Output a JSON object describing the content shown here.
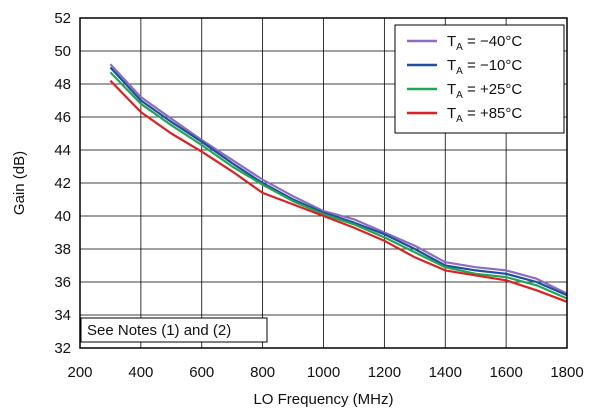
{
  "chart_data": {
    "type": "line",
    "title": "",
    "xlabel": "LO Frequency (MHz)",
    "ylabel": "Gain (dB)",
    "xlim": [
      200,
      1800
    ],
    "ylim": [
      32,
      52
    ],
    "xticks": [
      200,
      400,
      600,
      800,
      1000,
      1200,
      1400,
      1600,
      1800
    ],
    "yticks": [
      32,
      34,
      36,
      38,
      40,
      42,
      44,
      46,
      48,
      50,
      52
    ],
    "grid": true,
    "legend_position": "top-right",
    "note": "See Notes (1) and (2)",
    "legend_prefix": "T",
    "legend_subscript": "A",
    "series": [
      {
        "name": "T_A = −40°C",
        "label_value": " = −40°C",
        "color": "#8e6cbf",
        "x": [
          300,
          400,
          500,
          600,
          700,
          800,
          900,
          1000,
          1100,
          1200,
          1300,
          1400,
          1500,
          1600,
          1700,
          1800
        ],
        "y": [
          49.2,
          47.2,
          45.9,
          44.6,
          43.4,
          42.2,
          41.2,
          40.3,
          39.8,
          39.0,
          38.2,
          37.2,
          36.9,
          36.7,
          36.2,
          35.3
        ]
      },
      {
        "name": "T_A = −10°C",
        "label_value": " = −10°C",
        "color": "#1f4fa0",
        "x": [
          300,
          400,
          500,
          600,
          700,
          800,
          900,
          1000,
          1100,
          1200,
          1300,
          1400,
          1500,
          1600,
          1700,
          1800
        ],
        "y": [
          49.0,
          47.0,
          45.7,
          44.5,
          43.2,
          42.0,
          41.0,
          40.2,
          39.6,
          38.9,
          38.0,
          37.0,
          36.7,
          36.5,
          36.0,
          35.2
        ]
      },
      {
        "name": "T_A = +25°C",
        "label_value": " = +25°C",
        "color": "#1fa854",
        "x": [
          300,
          400,
          500,
          600,
          700,
          800,
          900,
          1000,
          1100,
          1200,
          1300,
          1400,
          1500,
          1600,
          1700,
          1800
        ],
        "y": [
          48.7,
          46.8,
          45.5,
          44.3,
          43.0,
          41.9,
          40.9,
          40.1,
          39.5,
          38.7,
          37.8,
          36.9,
          36.5,
          36.3,
          35.8,
          35.0
        ]
      },
      {
        "name": "T_A = +85°C",
        "label_value": " = +85°C",
        "color": "#e02020",
        "x": [
          300,
          400,
          500,
          600,
          700,
          800,
          900,
          1000,
          1100,
          1200,
          1300,
          1400,
          1500,
          1600,
          1700,
          1800
        ],
        "y": [
          48.2,
          46.3,
          45.0,
          43.9,
          42.7,
          41.4,
          40.7,
          40.0,
          39.3,
          38.5,
          37.5,
          36.7,
          36.4,
          36.1,
          35.5,
          34.8
        ]
      }
    ]
  }
}
